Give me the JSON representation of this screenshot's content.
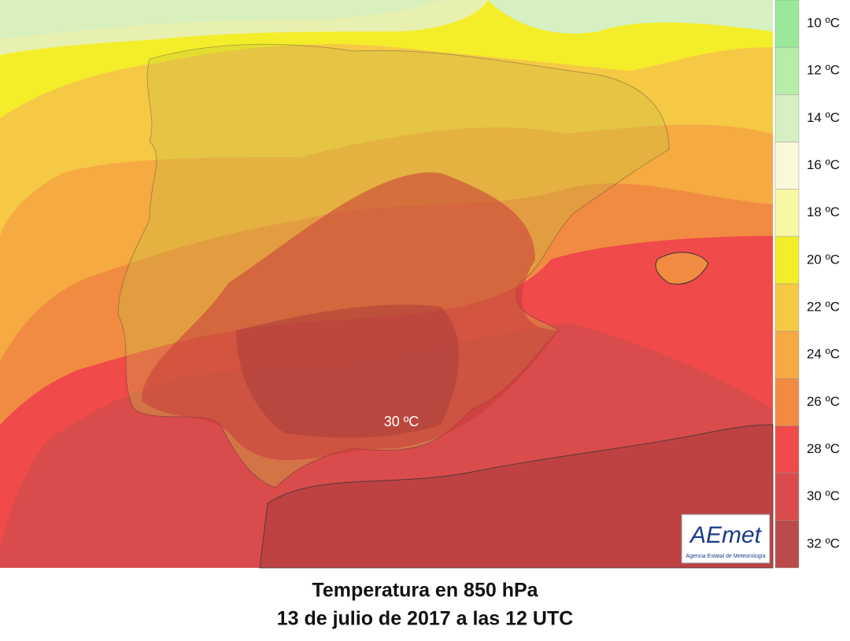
{
  "map": {
    "label": "30 ºC"
  },
  "legend": {
    "items": [
      {
        "label": "10 ºC",
        "color": "#9be89b"
      },
      {
        "label": "12 ºC",
        "color": "#b6eda8"
      },
      {
        "label": "14 ºC",
        "color": "#d6f0c2"
      },
      {
        "label": "16 ºC",
        "color": "#fbf8d9"
      },
      {
        "label": "18 ºC",
        "color": "#f9f7a3"
      },
      {
        "label": "20 ºC",
        "color": "#f4ee2a"
      },
      {
        "label": "22 ºC",
        "color": "#f6c945"
      },
      {
        "label": "24 ºC",
        "color": "#f5aa42"
      },
      {
        "label": "26 ºC",
        "color": "#f28b42"
      },
      {
        "label": "28 ºC",
        "color": "#f04a4a"
      },
      {
        "label": "30 ºC",
        "color": "#da4c4c"
      },
      {
        "label": "32 ºC",
        "color": "#bb4a4a"
      }
    ]
  },
  "logo": {
    "name": "AEmet",
    "subtitle": "Agencia Estatal de Meteorología"
  },
  "title": {
    "line1": "Temperatura en 850 hPa",
    "line2": "13 de julio de 2017 a las 12 UTC"
  }
}
